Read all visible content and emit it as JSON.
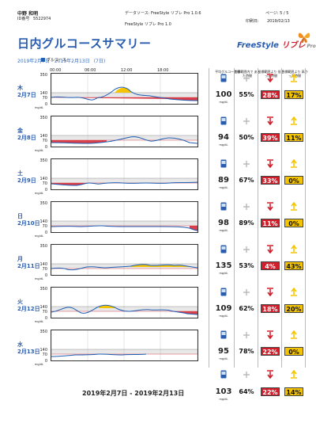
{
  "header": {
    "patient_name": "中野 和明",
    "patient_id_label": "ID番号",
    "patient_id": "5522974",
    "data_source": "データソース: FreeStyle リブレ Pro 1.0.6",
    "device": "FreeStyle リブレ Pro 1.0",
    "page": "ページ: 5 / 5",
    "print_date_label": "印刷日:",
    "print_date": "2019/02/13",
    "title": "日内グルコースサマリー",
    "date_range": "2019年2月7日 - 2019年2月13日",
    "days_note": "(7日)",
    "logo_main": "FreeStyle ",
    "logo_red": "リブレ",
    "logo_tail": " Pro",
    "legend_label": "グルコース"
  },
  "axis": {
    "times": [
      "00:00",
      "06:00",
      "12:00",
      "18:00"
    ],
    "y_ticks": [
      "350",
      "140",
      "70",
      "0"
    ],
    "y_unit": "mg/dL"
  },
  "stat_headers": {
    "avg": "平均グルコース値",
    "in_range": "目標範囲内で あった時間",
    "below": "目標範囲より 低かった時間",
    "above": "目標範囲より 高かった時間"
  },
  "colors": {
    "low": "#d21e2b",
    "high": "#f5c400",
    "trace": "#1f5fb4",
    "accent": "#2a5db0"
  },
  "days": [
    {
      "weekday": "木",
      "date": "2月7日",
      "avg": "100",
      "unit": "mg/dL",
      "in_range": "55%",
      "below": "28%",
      "above": "17%"
    },
    {
      "weekday": "金",
      "date": "2月8日",
      "avg": "94",
      "unit": "mg/dL",
      "in_range": "50%",
      "below": "39%",
      "above": "11%"
    },
    {
      "weekday": "土",
      "date": "2月9日",
      "avg": "89",
      "unit": "mg/dL",
      "in_range": "67%",
      "below": "33%",
      "above": "0%"
    },
    {
      "weekday": "日",
      "date": "2月10日",
      "avg": "98",
      "unit": "mg/dL",
      "in_range": "89%",
      "below": "11%",
      "above": "0%"
    },
    {
      "weekday": "月",
      "date": "2月11日",
      "avg": "135",
      "unit": "mg/dL",
      "in_range": "53%",
      "below": "4%",
      "above": "43%"
    },
    {
      "weekday": "火",
      "date": "2月12日",
      "avg": "109",
      "unit": "mg/dL",
      "in_range": "62%",
      "below": "18%",
      "above": "20%"
    },
    {
      "weekday": "水",
      "date": "2月13日",
      "avg": "95",
      "unit": "mg/dL",
      "in_range": "78%",
      "below": "22%",
      "above": "0%"
    }
  ],
  "summary": {
    "date_range": "2019年2月7日 - 2019年2月13日",
    "avg": "103",
    "unit": "mg/dL",
    "in_range": "64%",
    "below": "22%",
    "above": "14%"
  }
}
